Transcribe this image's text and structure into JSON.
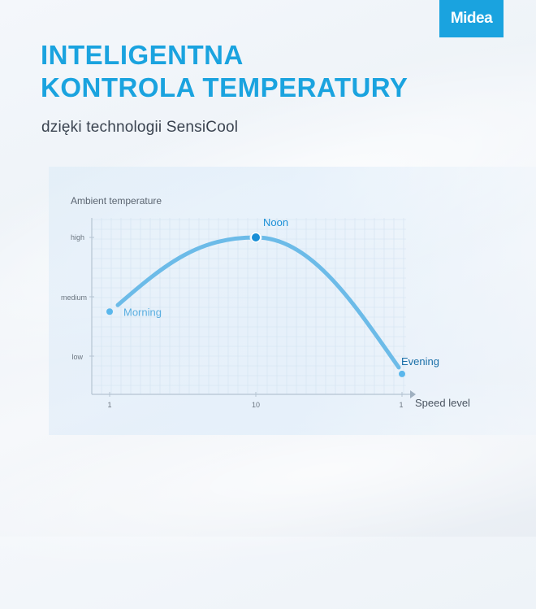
{
  "brand": {
    "logo_text": "Midea"
  },
  "headline": {
    "line1": "INTELIGENTNA",
    "line2": "KONTROLA TEMPERATURY"
  },
  "subtitle": "dzięki technologii SensiCool",
  "colors": {
    "accent": "#1aa3df",
    "curve": "#6cbbe8",
    "grid": "#c7dcee",
    "axis": "#b5c4d2",
    "text": "#3a4350"
  },
  "chart_data": {
    "type": "line",
    "ylabel": "Ambient temperature",
    "xlabel": "Speed level",
    "y_ticks": [
      "low",
      "medium",
      "high"
    ],
    "x_ticks": [
      "1",
      "10",
      "1"
    ],
    "points": [
      {
        "label": "Morning",
        "x": 0,
        "y": 0.75
      },
      {
        "label": "Noon",
        "x": 1,
        "y": 2
      },
      {
        "label": "Evening",
        "x": 2,
        "y": -0.3
      }
    ]
  }
}
